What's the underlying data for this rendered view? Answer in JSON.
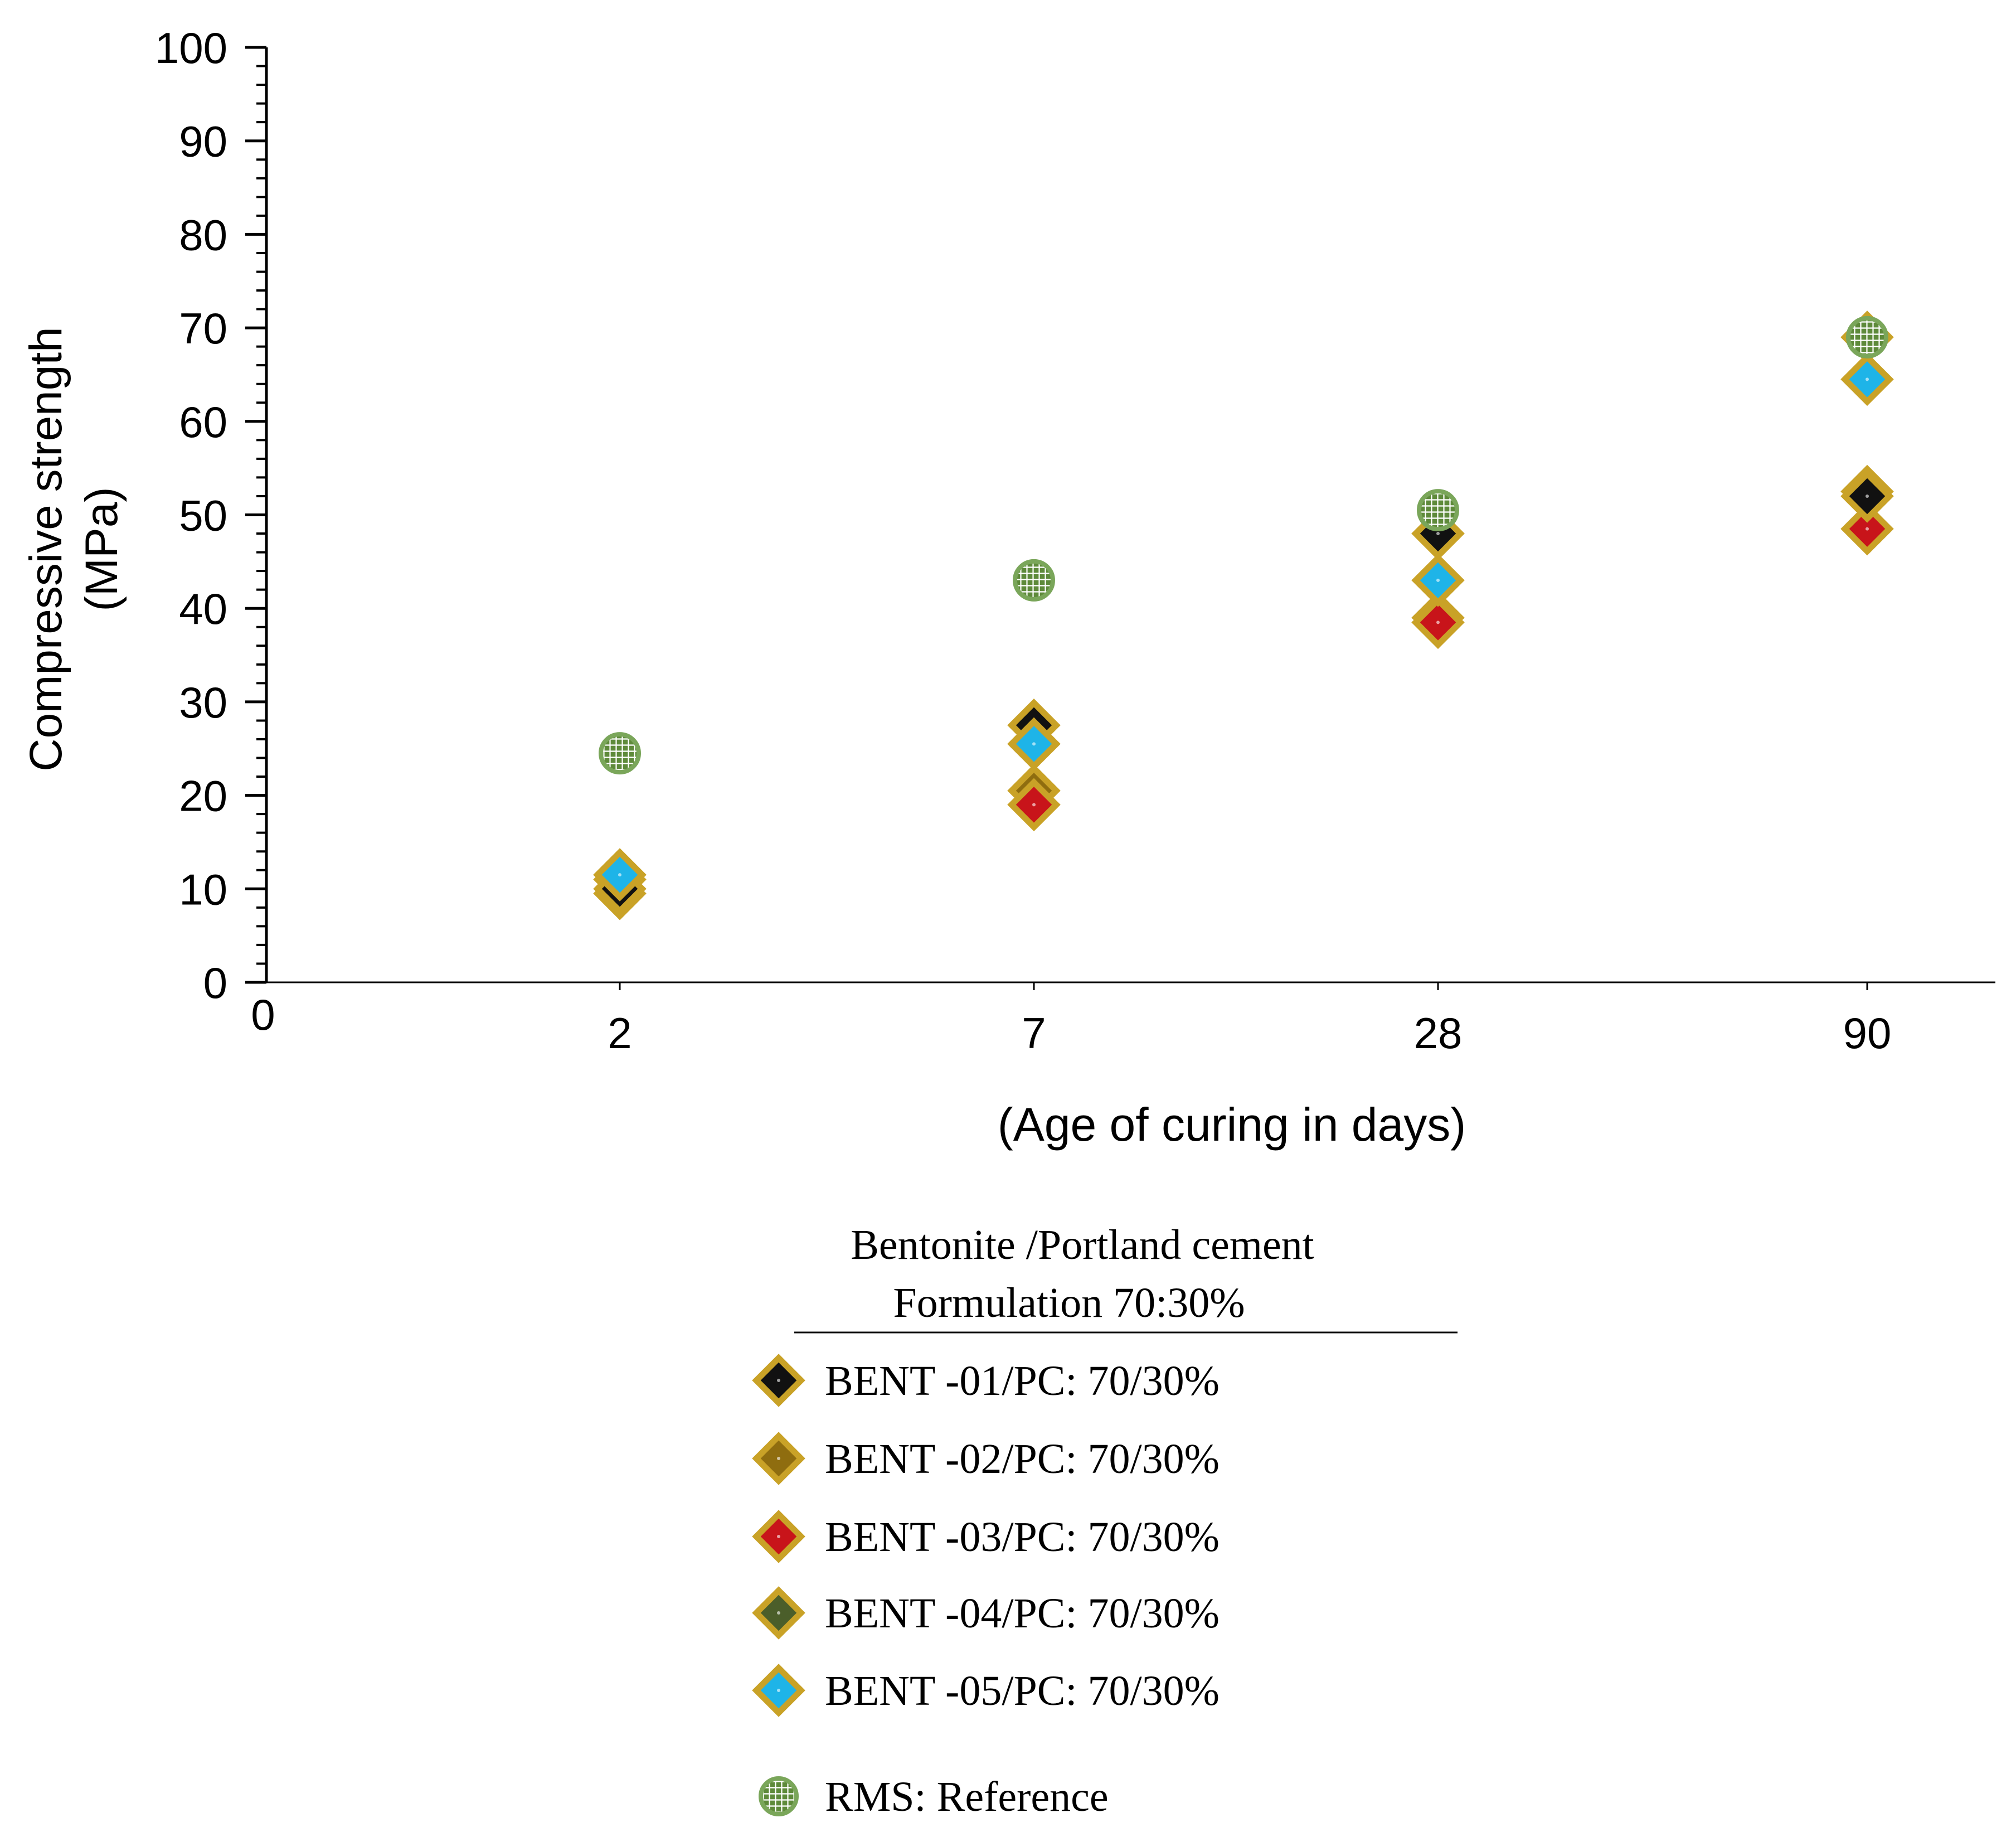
{
  "chart_data": {
    "type": "scatter",
    "title": "",
    "xlabel": "(Age of curing in days)",
    "ylabel": "Compressive strength (MPa)",
    "ylabel_lines": [
      "Compressive strength",
      "(MPa)"
    ],
    "ylim": [
      0,
      100
    ],
    "y_major_ticks": [
      0,
      10,
      20,
      30,
      40,
      50,
      60,
      70,
      80,
      90,
      100
    ],
    "y_minor_step": 2,
    "x_origin_label": "0",
    "categories": [
      "2",
      "7",
      "28",
      "90"
    ],
    "grid": false,
    "series": [
      {
        "name": "BENT -01/PC: 70/30%",
        "marker": "diamond",
        "fill": "#111111",
        "values": [
          10,
          27.5,
          48,
          52
        ]
      },
      {
        "name": "BENT -02/PC: 70/30%",
        "marker": "diamond",
        "fill": "#8f6d0f",
        "values": [
          11,
          20.5,
          39,
          52.5
        ]
      },
      {
        "name": "BENT -03/PC: 70/30%",
        "marker": "diamond",
        "fill": "#c8141a",
        "values": [
          9.5,
          19,
          38.5,
          48.5
        ]
      },
      {
        "name": "BENT -04/PC: 70/30%",
        "marker": "diamond",
        "fill": "#4b5e2a",
        "values": [
          11.5,
          25.5,
          48,
          69
        ]
      },
      {
        "name": "BENT -05/PC: 70/30%",
        "marker": "diamond",
        "fill": "#1eb4e8",
        "values": [
          11.5,
          25.5,
          43,
          64.5
        ]
      },
      {
        "name": "RMS: Reference",
        "marker": "circle",
        "fill": "#5e8a3a",
        "values": [
          24.5,
          43,
          50.5,
          69
        ]
      }
    ],
    "legend": {
      "position": "bottom-center",
      "title_lines": [
        "Bentonite /Portland cement",
        "Formulation 70:30%"
      ]
    }
  },
  "colors": {
    "axis": "#000000",
    "diamond_border": "#c9a227",
    "circle_border": "#7aa65a",
    "circle_hatch": "#ffffff"
  }
}
